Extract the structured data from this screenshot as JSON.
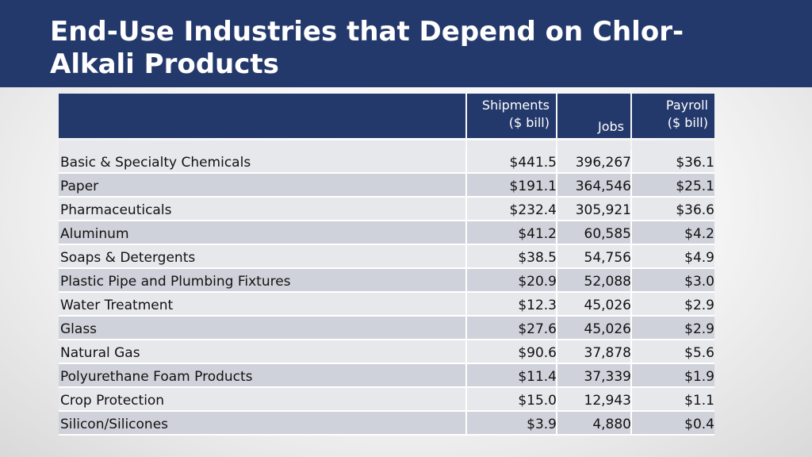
{
  "title": "End-Use Industries that Depend on Chlor-Alkali Products",
  "table": {
    "headers": {
      "shipments": [
        "Shipments",
        "($ bill)"
      ],
      "jobs": "Jobs",
      "payroll": [
        "Payroll",
        "($ bill)"
      ]
    },
    "rows": [
      {
        "industry": "Basic & Specialty Chemicals",
        "shipments": "$441.5",
        "jobs": "396,267",
        "payroll": "$36.1"
      },
      {
        "industry": "Paper",
        "shipments": "$191.1",
        "jobs": "364,546",
        "payroll": "$25.1"
      },
      {
        "industry": "Pharmaceuticals",
        "shipments": "$232.4",
        "jobs": "305,921",
        "payroll": "$36.6"
      },
      {
        "industry": "Aluminum",
        "shipments": "$41.2",
        "jobs": "60,585",
        "payroll": "$4.2"
      },
      {
        "industry": "Soaps & Detergents",
        "shipments": "$38.5",
        "jobs": "54,756",
        "payroll": "$4.9"
      },
      {
        "industry": "Plastic Pipe and Plumbing Fixtures",
        "shipments": "$20.9",
        "jobs": "52,088",
        "payroll": "$3.0"
      },
      {
        "industry": "Water Treatment",
        "shipments": "$12.3",
        "jobs": "45,026",
        "payroll": "$2.9"
      },
      {
        "industry": "Glass",
        "shipments": "$27.6",
        "jobs": "45,026",
        "payroll": "$2.9"
      },
      {
        "industry": "Natural Gas",
        "shipments": "$90.6",
        "jobs": "37,878",
        "payroll": "$5.6"
      },
      {
        "industry": "Polyurethane Foam Products",
        "shipments": "$11.4",
        "jobs": "37,339",
        "payroll": "$1.9"
      },
      {
        "industry": "Crop Protection",
        "shipments": "$15.0",
        "jobs": "12,943",
        "payroll": "$1.1"
      },
      {
        "industry": "Silicon/Silicones",
        "shipments": "$3.9",
        "jobs": "4,880",
        "payroll": "$0.4"
      }
    ]
  },
  "colors": {
    "header_bg": "#24396b",
    "row_light": "#e7e8ec",
    "row_dark": "#cfd2da"
  }
}
